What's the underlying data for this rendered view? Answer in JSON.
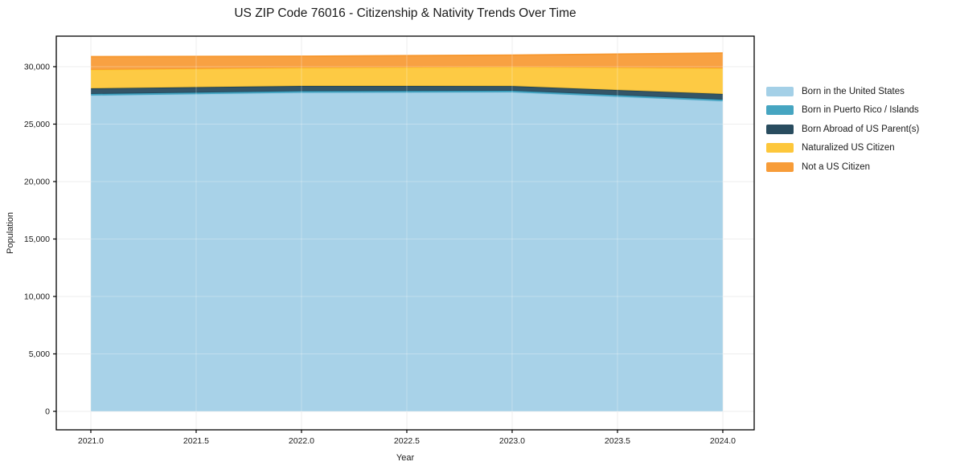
{
  "chart_data": {
    "type": "area",
    "title": "US ZIP Code 76016 - Citizenship & Nativity Trends Over Time",
    "xlabel": "Year",
    "ylabel": "Population",
    "x": [
      2021,
      2022,
      2023,
      2024
    ],
    "series": [
      {
        "name": "Born in the United States",
        "color": "#9fcde6",
        "values": [
          27480,
          27730,
          27760,
          26990
        ]
      },
      {
        "name": "Born in Puerto Rico / Islands",
        "color": "#3ca0be",
        "values": [
          140,
          140,
          140,
          140
        ]
      },
      {
        "name": "Born Abroad of US Parent(s)",
        "color": "#1e4256",
        "values": [
          490,
          450,
          415,
          490
        ]
      },
      {
        "name": "Naturalized US Citizen",
        "color": "#fdc430",
        "values": [
          1610,
          1575,
          1645,
          2240
        ]
      },
      {
        "name": "Not a US Citizen",
        "color": "#f7972d",
        "values": [
          1155,
          1015,
          1050,
          1330
        ]
      }
    ],
    "x_ticks": {
      "values": [
        2021,
        2021.5,
        2022,
        2022.5,
        2023,
        2023.5,
        2024
      ],
      "labels": [
        "2021.0",
        "2021.5",
        "2022.0",
        "2022.5",
        "2023.0",
        "2023.5",
        "2024.0"
      ]
    },
    "y_ticks": {
      "values": [
        0,
        5000,
        10000,
        15000,
        20000,
        25000,
        30000
      ],
      "labels": [
        "0",
        "5,000",
        "10,000",
        "15,000",
        "20,000",
        "25,000",
        "30,000"
      ]
    },
    "xlim": [
      2020.836,
      2024.149
    ],
    "ylim": [
      -1608,
      32657
    ],
    "grid": true,
    "legend_position": "right"
  }
}
